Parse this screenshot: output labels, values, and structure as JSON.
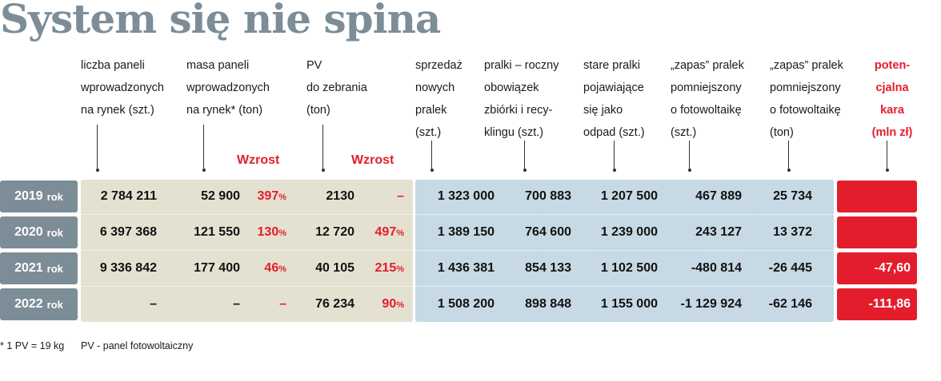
{
  "title": "System się nie spina",
  "headers": {
    "panele_szt": "liczba paneli\nwprowadzonych\nna rynek (szt.)",
    "panele_ton": "masa paneli\nwprowadzonych\nna rynek* (ton)",
    "pv_ton": "PV\ndo zebrania\n(ton)",
    "sprzedaz": "sprzedaż\nnowych\npralek\n(szt.)",
    "pralki_obowiazek": "pralki – roczny\nobowiązek\nzbiórki i recy-\nklingu (szt.)",
    "stare_pralki": "stare pralki\npojawiające\nsię jako\nodpad (szt.)",
    "zapas_szt": "„zapas” pralek\npomniejszony\no fotowoltaikę\n(szt.)",
    "zapas_ton": "„zapas” pralek\npomniejszony\no fotowoltaikę\n(ton)",
    "kara": "poten-\ncjalna\nkara\n(mln zł)"
  },
  "wzrost_label": "Wzrost",
  "chart_data": {
    "type": "table",
    "title": "System się nie spina",
    "columns": [
      "liczba paneli wprowadzonych na rynek (szt.)",
      "masa paneli wprowadzonych na rynek* (ton)",
      "Wzrost",
      "PV do zebrania (ton)",
      "Wzrost",
      "sprzedaż nowych pralek (szt.)",
      "pralki – roczny obowiązek zbiórki i recyklingu (szt.)",
      "stare pralki pojawiające się jako odpad (szt.)",
      "„zapas” pralek pomniejszony o fotowoltaikę (szt.)",
      "„zapas” pralek pomniejszony o fotowoltaikę (ton)",
      "potencjalna kara (mln zł)"
    ],
    "rows": [
      {
        "year": "2019",
        "rok": "rok",
        "panele_szt": "2 784 211",
        "panele_ton": "52 900",
        "wzrost1": "397",
        "wzrost1_unit": "%",
        "pv_ton": "2130",
        "wzrost2": "–",
        "wzrost2_unit": "",
        "sprzedaz": "1 323 000",
        "obowiazek": "700 883",
        "stare": "1 207 500",
        "zapas_szt": "467 889",
        "zapas_ton": "25 734",
        "kara": ""
      },
      {
        "year": "2020",
        "rok": "rok",
        "panele_szt": "6 397 368",
        "panele_ton": "121 550",
        "wzrost1": "130",
        "wzrost1_unit": "%",
        "pv_ton": "12 720",
        "wzrost2": "497",
        "wzrost2_unit": "%",
        "sprzedaz": "1 389 150",
        "obowiazek": "764 600",
        "stare": "1 239 000",
        "zapas_szt": "243 127",
        "zapas_ton": "13 372",
        "kara": ""
      },
      {
        "year": "2021",
        "rok": "rok",
        "panele_szt": "9 336 842",
        "panele_ton": "177 400",
        "wzrost1": "46",
        "wzrost1_unit": "%",
        "pv_ton": "40 105",
        "wzrost2": "215",
        "wzrost2_unit": "%",
        "sprzedaz": "1 436 381",
        "obowiazek": "854 133",
        "stare": "1 102 500",
        "zapas_szt": "-480 814",
        "zapas_ton": "-26 445",
        "kara": "-47,60"
      },
      {
        "year": "2022",
        "rok": "rok",
        "panele_szt": "–",
        "panele_ton": "–",
        "wzrost1": "–",
        "wzrost1_unit": "",
        "pv_ton": "76 234",
        "wzrost2": "90",
        "wzrost2_unit": "%",
        "sprzedaz": "1 508 200",
        "obowiazek": "898 848",
        "stare": "1 155 000",
        "zapas_szt": "-1 129 924",
        "zapas_ton": "-62 146",
        "kara": "-111,86"
      }
    ]
  },
  "footnotes": {
    "pv_mass": "* 1 PV = 19 kg",
    "pv_def": "PV - panel fotowoltaiczny"
  },
  "colors": {
    "title": "#7d8d98",
    "year_box": "#7d8d98",
    "beige_band": "#e5e1d1",
    "blue_band": "#c6d9e4",
    "accent_red": "#e41d2c"
  }
}
